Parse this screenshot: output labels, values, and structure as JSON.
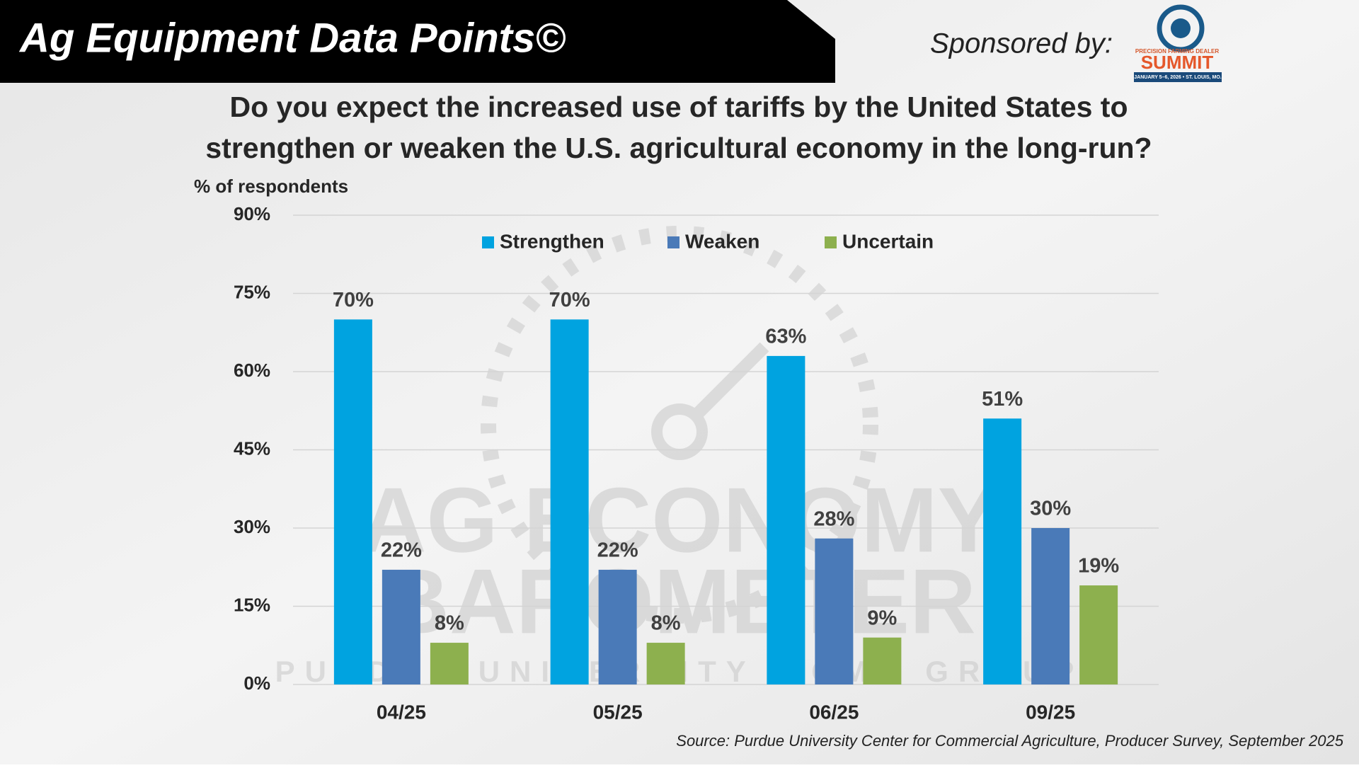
{
  "header": {
    "title": "Ag Equipment Data Points©",
    "sponsor": "Sponsored by:",
    "logo": {
      "line1": "PRECISION FARMING DEALER",
      "line2": "SUMMIT",
      "line3": "JANUARY 5–6, 2026 • ST. LOUIS, MO."
    }
  },
  "watermark": [
    "AG ECONOMY",
    "BAROMETER",
    "PURDUE UNIVERSITY · CME GROUP"
  ],
  "chart_data": {
    "type": "bar",
    "title": [
      "Do you expect the increased use of tariffs by the United States to",
      "strengthen or weaken the U.S. agricultural economy in the long-run?"
    ],
    "y_label": "% of respondents",
    "categories": [
      "04/25",
      "05/25",
      "06/25",
      "09/25"
    ],
    "series": [
      {
        "name": "Strengthen",
        "color": "#00a3e0",
        "values": [
          70,
          70,
          63,
          51
        ],
        "value_labels": [
          "70%",
          "70%",
          "63%",
          "51%"
        ]
      },
      {
        "name": "Weaken",
        "color": "#4a7ab8",
        "values": [
          22,
          22,
          28,
          30
        ],
        "value_labels": [
          "22%",
          "22%",
          "28%",
          "30%"
        ]
      },
      {
        "name": "Uncertain",
        "color": "#8db04e",
        "values": [
          8,
          8,
          9,
          19
        ],
        "value_labels": [
          "8%",
          "8%",
          "9%",
          "19%"
        ]
      }
    ],
    "ylim": [
      0,
      90
    ],
    "yticks": [
      {
        "value": 0,
        "label": "0%"
      },
      {
        "value": 15,
        "label": "15%"
      },
      {
        "value": 30,
        "label": "30%"
      },
      {
        "value": 45,
        "label": "45%"
      },
      {
        "value": 60,
        "label": "60%"
      },
      {
        "value": 75,
        "label": "75%"
      },
      {
        "value": 90,
        "label": "90%"
      }
    ],
    "grid": true,
    "legend": "top",
    "source": "Source: Purdue University Center for Commercial Agriculture, Producer Survey, September 2025"
  }
}
